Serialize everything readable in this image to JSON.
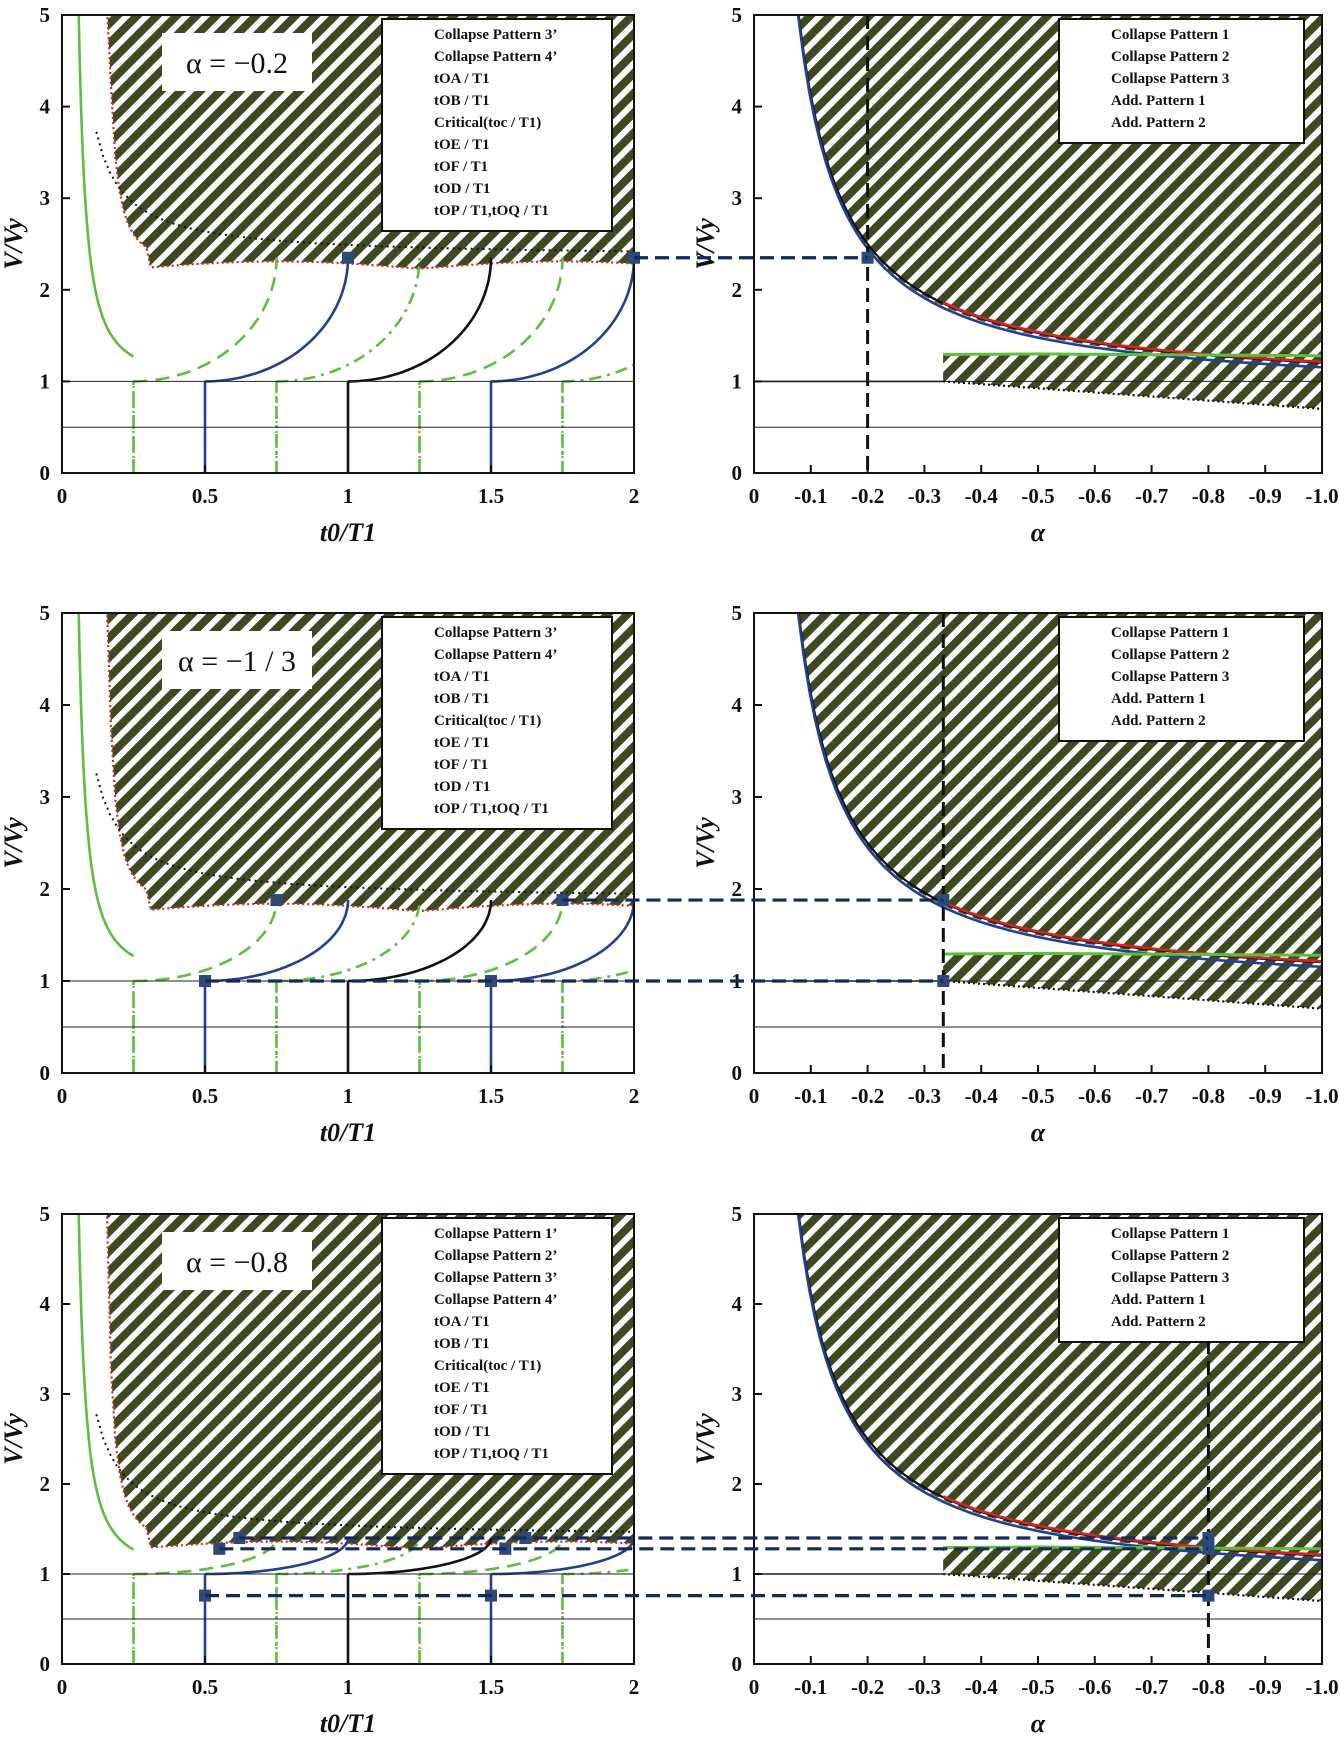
{
  "figure": {
    "description_title": ""
  },
  "chart_data": [
    {
      "type": "line",
      "panel": "left",
      "alpha_label": "α = −0.2",
      "xlabel": "t0/T1",
      "ylabel": "V/Vy",
      "xlim": [
        0,
        2
      ],
      "ylim": [
        0,
        5
      ],
      "xticks": [
        "0",
        "0.5",
        "1",
        "1.5",
        "2"
      ],
      "yticks": [
        "0",
        "1",
        "2",
        "3",
        "4",
        "5"
      ],
      "legend": [
        "Collapse Pattern 3’",
        "Collapse Pattern 4’",
        "tOA / T1",
        "tOB / T1",
        "Critical(toc / T1)",
        "tOE / T1",
        "tOF / T1",
        "tOD / T1",
        "tOP / T1,tOQ / T1"
      ],
      "critical_level": 2.35,
      "markers": [
        [
          1,
          2.35
        ],
        [
          2,
          2.35
        ]
      ]
    },
    {
      "type": "line",
      "panel": "right",
      "xlabel": "α",
      "ylabel": "V/Vy",
      "xlim": [
        0,
        -1.0
      ],
      "ylim": [
        0,
        5
      ],
      "xticks": [
        "0",
        "-0.1",
        "-0.2",
        "-0.3",
        "-0.4",
        "-0.5",
        "-0.6",
        "-0.7",
        "-0.8",
        "-0.9",
        "-1.0"
      ],
      "yticks": [
        "0",
        "1",
        "2",
        "3",
        "4",
        "5"
      ],
      "legend": [
        "Collapse Pattern 1",
        "Collapse Pattern 2",
        "Collapse Pattern 3",
        "Add. Pattern 1",
        "Add. Pattern 2"
      ],
      "vline": -0.2,
      "markers": [
        [
          -0.2,
          2.35
        ]
      ]
    },
    {
      "type": "line",
      "panel": "left",
      "alpha_label": "α = −1 / 3",
      "xlabel": "t0/T1",
      "ylabel": "V/Vy",
      "xlim": [
        0,
        2
      ],
      "ylim": [
        0,
        5
      ],
      "xticks": [
        "0",
        "0.5",
        "1",
        "1.5",
        "2"
      ],
      "yticks": [
        "0",
        "1",
        "2",
        "3",
        "4",
        "5"
      ],
      "legend": [
        "Collapse Pattern 3’",
        "Collapse Pattern 4’",
        "tOA / T1",
        "tOB / T1",
        "Critical(toc / T1)",
        "tOE / T1",
        "tOF / T1",
        "tOD / T1",
        "tOP / T1,tOQ / T1"
      ],
      "critical_level": 1.88,
      "markers": [
        [
          0.5,
          1.0
        ],
        [
          0.75,
          1.88
        ],
        [
          1.5,
          1.0
        ],
        [
          1.75,
          1.88
        ]
      ]
    },
    {
      "type": "line",
      "panel": "right",
      "xlabel": "α",
      "ylabel": "V/Vy",
      "xlim": [
        0,
        -1.0
      ],
      "ylim": [
        0,
        5
      ],
      "xticks": [
        "0",
        "-0.1",
        "-0.2",
        "-0.3",
        "-0.4",
        "-0.5",
        "-0.6",
        "-0.7",
        "-0.8",
        "-0.9",
        "-1.0"
      ],
      "yticks": [
        "0",
        "1",
        "2",
        "3",
        "4",
        "5"
      ],
      "legend": [
        "Collapse Pattern 1",
        "Collapse Pattern 2",
        "Collapse Pattern 3",
        "Add. Pattern 1",
        "Add. Pattern 2"
      ],
      "vline": -0.3333,
      "markers": [
        [
          -0.3333,
          1.88
        ],
        [
          -0.3333,
          1.0
        ]
      ]
    },
    {
      "type": "line",
      "panel": "left",
      "alpha_label": "α = −0.8",
      "xlabel": "t0/T1",
      "ylabel": "V/Vy",
      "xlim": [
        0,
        2
      ],
      "ylim": [
        0,
        5
      ],
      "xticks": [
        "0",
        "0.5",
        "1",
        "1.5",
        "2"
      ],
      "yticks": [
        "0",
        "1",
        "2",
        "3",
        "4",
        "5"
      ],
      "legend": [
        "Collapse Pattern 1’",
        "Collapse Pattern 2’",
        "Collapse Pattern 3’",
        "Collapse Pattern 4’",
        "tOA / T1",
        "tOB / T1",
        "Critical(toc / T1)",
        "tOE / T1",
        "tOF / T1",
        "tOD / T1",
        "tOP / T1,tOQ / T1"
      ],
      "critical_level": 1.4,
      "markers": [
        [
          0.5,
          0.76
        ],
        [
          0.55,
          1.28
        ],
        [
          0.62,
          1.4
        ],
        [
          1.5,
          0.76
        ],
        [
          1.55,
          1.28
        ],
        [
          1.62,
          1.4
        ]
      ]
    },
    {
      "type": "line",
      "panel": "right",
      "xlabel": "α",
      "ylabel": "V/Vy",
      "xlim": [
        0,
        -1.0
      ],
      "ylim": [
        0,
        5
      ],
      "xticks": [
        "0",
        "-0.1",
        "-0.2",
        "-0.3",
        "-0.4",
        "-0.5",
        "-0.6",
        "-0.7",
        "-0.8",
        "-0.9",
        "-1.0"
      ],
      "yticks": [
        "0",
        "1",
        "2",
        "3",
        "4",
        "5"
      ],
      "legend": [
        "Collapse Pattern 1",
        "Collapse Pattern 2",
        "Collapse Pattern 3",
        "Add. Pattern 1",
        "Add. Pattern 2"
      ],
      "vline": -0.8,
      "markers": [
        [
          -0.8,
          1.4
        ],
        [
          -0.8,
          1.28
        ],
        [
          -0.8,
          0.76
        ]
      ]
    }
  ],
  "colors": {
    "hatch_bg": "#3d4a1f",
    "hatch_line": "#ffffff",
    "green": "#5cc03a",
    "blue": "#1f3f9a",
    "red": "#e02020",
    "marker": "#2b4a7a",
    "link": "#152a5c"
  }
}
